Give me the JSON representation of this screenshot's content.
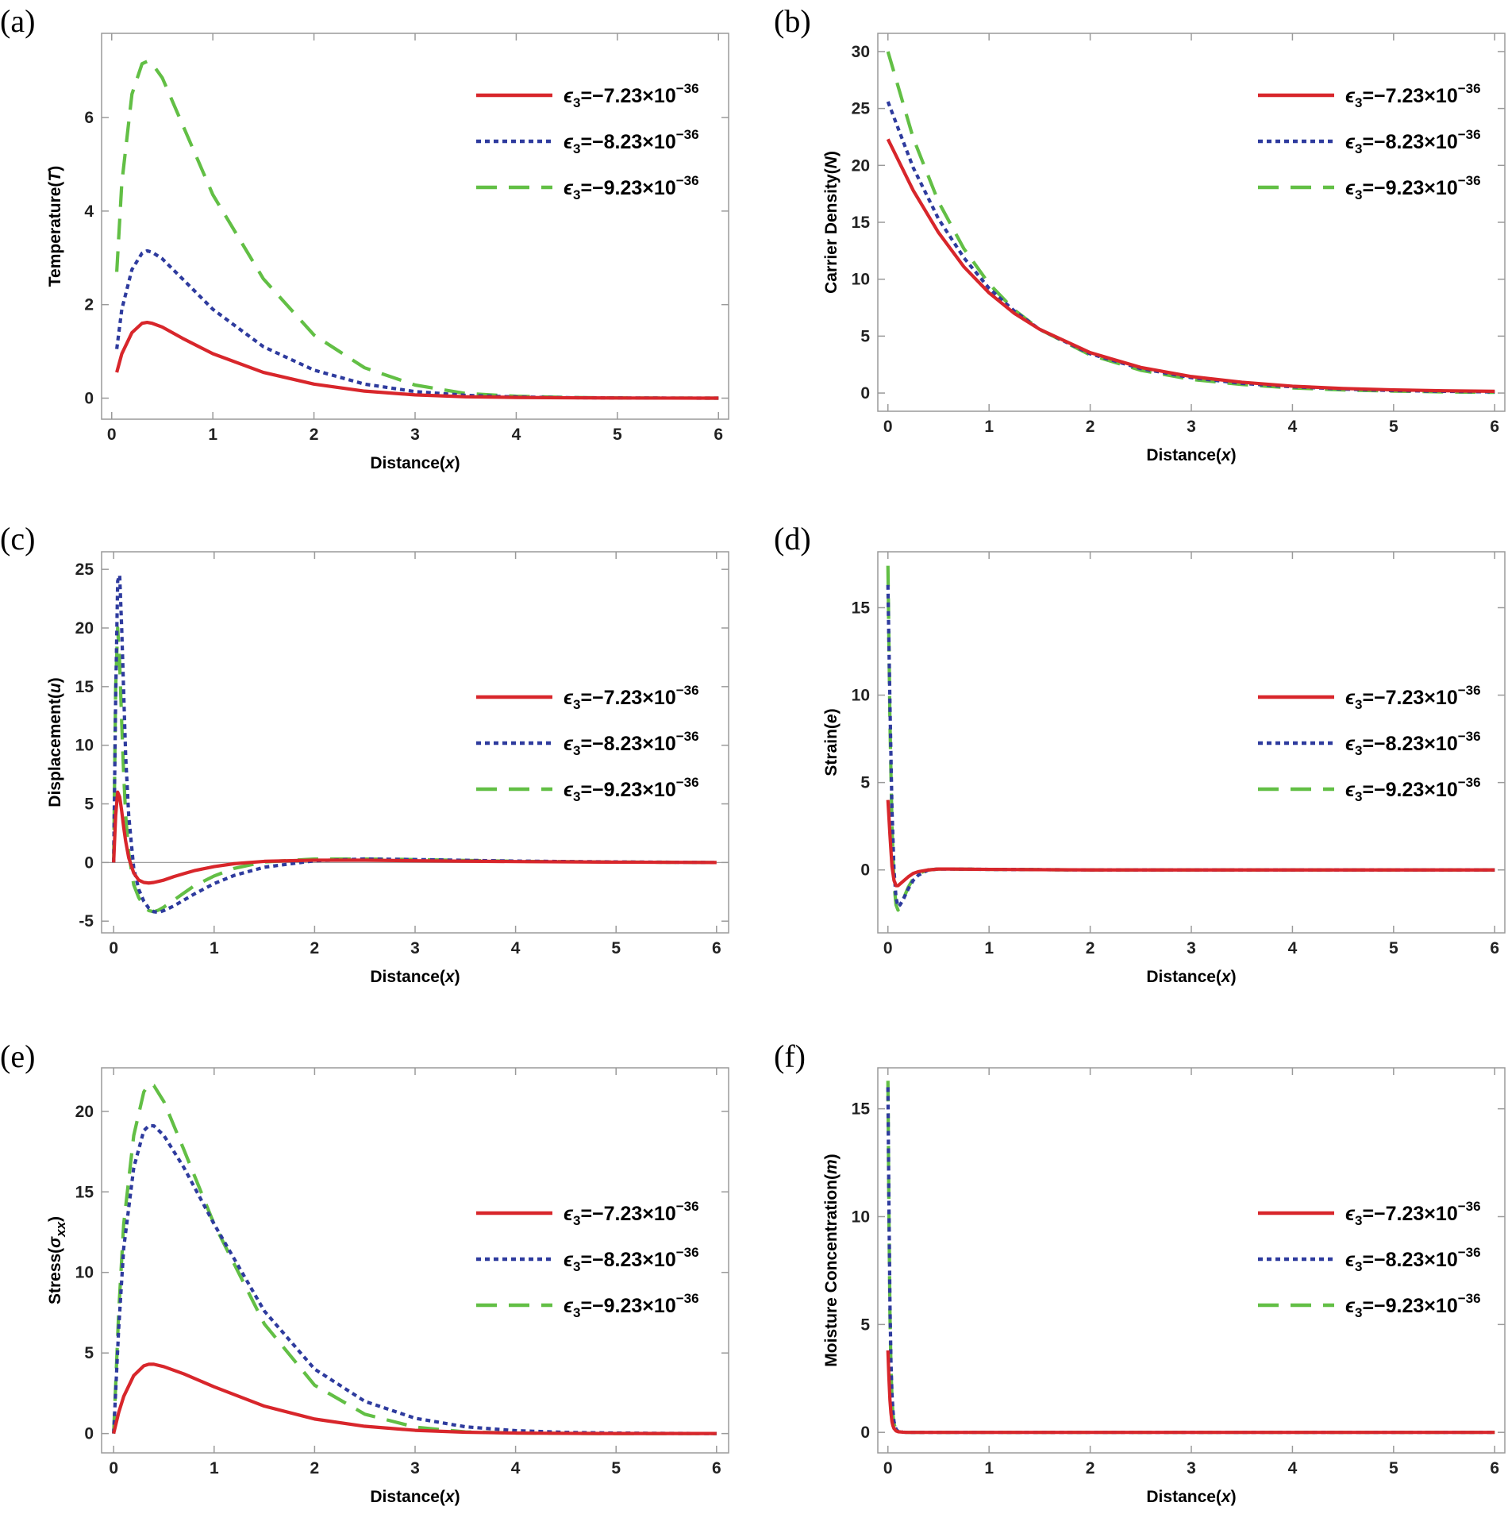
{
  "legend": {
    "symbol": "ϵ",
    "subscript": "3",
    "exponent": "−36",
    "entries": [
      {
        "coef": "=−7.23×10",
        "color": "#d8262b",
        "dash": "solid"
      },
      {
        "coef": "=−8.23×10",
        "color": "#2e3b9e",
        "dash": "dot"
      },
      {
        "coef": "=−9.23×10",
        "color": "#62bf45",
        "dash": "dash"
      }
    ]
  },
  "chart_data": [
    {
      "panel": "(a)",
      "type": "line",
      "xlabel": "Distance(",
      "xlabel_var": "x",
      "xlabel_tail": ")",
      "ylabel": "Temperature(",
      "ylabel_var": "T",
      "ylabel_tail": ")",
      "xlim": [
        -0.1,
        6.1
      ],
      "ylim": [
        -0.45,
        7.8
      ],
      "xticks": [
        0,
        1,
        2,
        3,
        4,
        5,
        6
      ],
      "yticks": [
        0,
        2,
        4,
        6
      ],
      "zero_line": false,
      "x": [
        0.05,
        0.1,
        0.2,
        0.3,
        0.35,
        0.4,
        0.5,
        0.7,
        1.0,
        1.5,
        2.0,
        2.5,
        3.0,
        3.5,
        4.0,
        4.5,
        5.0,
        5.5,
        6.0
      ],
      "series": [
        {
          "name": "ϵ3=−7.23×10^−36",
          "values": [
            0.55,
            0.95,
            1.4,
            1.6,
            1.62,
            1.6,
            1.52,
            1.28,
            0.95,
            0.55,
            0.3,
            0.15,
            0.07,
            0.03,
            0.015,
            0.007,
            0.003,
            0.001,
            0.0
          ]
        },
        {
          "name": "ϵ3=−8.23×10^−36",
          "values": [
            1.05,
            1.9,
            2.75,
            3.1,
            3.15,
            3.12,
            2.98,
            2.55,
            1.9,
            1.1,
            0.6,
            0.3,
            0.14,
            0.06,
            0.025,
            0.01,
            0.004,
            0.001,
            0.0
          ]
        },
        {
          "name": "ϵ3=−9.23×10^−36",
          "values": [
            2.7,
            4.6,
            6.5,
            7.15,
            7.2,
            7.15,
            6.85,
            5.85,
            4.35,
            2.55,
            1.35,
            0.65,
            0.28,
            0.1,
            0.04,
            0.015,
            0.005,
            0.001,
            0.0
          ]
        }
      ]
    },
    {
      "panel": "(b)",
      "type": "line",
      "xlabel": "Distance(",
      "xlabel_var": "x",
      "xlabel_tail": ")",
      "ylabel": "Carrier Density(",
      "ylabel_var": "N",
      "ylabel_tail": ")",
      "xlim": [
        -0.1,
        6.1
      ],
      "ylim": [
        -1.6,
        31.6
      ],
      "xticks": [
        0,
        1,
        2,
        3,
        4,
        5,
        6
      ],
      "yticks": [
        0,
        5,
        10,
        15,
        20,
        25,
        30
      ],
      "zero_line": false,
      "x": [
        0.0,
        0.25,
        0.5,
        0.75,
        1.0,
        1.25,
        1.5,
        2.0,
        2.5,
        3.0,
        3.5,
        4.0,
        4.5,
        5.0,
        5.5,
        6.0
      ],
      "series": [
        {
          "name": "ϵ3=−7.23×10^−36",
          "values": [
            22.3,
            17.8,
            14.1,
            11.1,
            8.8,
            7.0,
            5.6,
            3.55,
            2.25,
            1.45,
            0.95,
            0.6,
            0.4,
            0.28,
            0.2,
            0.15
          ]
        },
        {
          "name": "ϵ3=−8.23×10^−36",
          "values": [
            25.6,
            19.8,
            15.3,
            11.9,
            9.2,
            7.2,
            5.6,
            3.45,
            2.15,
            1.35,
            0.85,
            0.55,
            0.35,
            0.22,
            0.15,
            0.1
          ]
        },
        {
          "name": "ϵ3=−9.23×10^−36",
          "values": [
            30.0,
            22.4,
            16.8,
            12.7,
            9.6,
            7.3,
            5.6,
            3.35,
            2.0,
            1.2,
            0.75,
            0.45,
            0.27,
            0.17,
            0.1,
            0.06
          ]
        }
      ]
    },
    {
      "panel": "(c)",
      "type": "line",
      "xlabel": "Distance(",
      "xlabel_var": "x",
      "xlabel_tail": ")",
      "ylabel": "Displacement(",
      "ylabel_var": "u",
      "ylabel_tail": ")",
      "xlim": [
        -0.12,
        6.12
      ],
      "ylim": [
        -6.0,
        26.5
      ],
      "xticks": [
        0,
        1,
        2,
        3,
        4,
        5,
        6
      ],
      "yticks": [
        -5,
        0,
        5,
        10,
        15,
        20,
        25
      ],
      "zero_line": true,
      "x": [
        0.0,
        0.02,
        0.04,
        0.06,
        0.08,
        0.1,
        0.12,
        0.15,
        0.2,
        0.25,
        0.3,
        0.35,
        0.4,
        0.45,
        0.5,
        0.6,
        0.7,
        0.8,
        1.0,
        1.2,
        1.5,
        2.0,
        2.5,
        3.0,
        4.0,
        5.0,
        6.0
      ],
      "series": [
        {
          "name": "ϵ3=−7.23×10^−36",
          "values": [
            0.0,
            4.0,
            6.0,
            5.6,
            4.4,
            3.0,
            1.8,
            0.4,
            -0.9,
            -1.5,
            -1.7,
            -1.75,
            -1.7,
            -1.6,
            -1.5,
            -1.2,
            -0.95,
            -0.7,
            -0.35,
            -0.1,
            0.1,
            0.2,
            0.2,
            0.15,
            0.08,
            0.03,
            0.0
          ]
        },
        {
          "name": "ϵ3=−8.23×10^−36",
          "values": [
            0.0,
            14.0,
            24.0,
            24.5,
            20.0,
            14.5,
            9.0,
            4.0,
            -0.5,
            -2.3,
            -3.3,
            -3.9,
            -4.2,
            -4.25,
            -4.1,
            -3.7,
            -3.2,
            -2.7,
            -1.8,
            -1.1,
            -0.4,
            0.15,
            0.3,
            0.25,
            0.12,
            0.05,
            0.0
          ]
        },
        {
          "name": "ϵ3=−9.23×10^−36",
          "values": [
            0.0,
            15.0,
            20.0,
            17.0,
            12.0,
            7.5,
            4.0,
            0.8,
            -1.9,
            -3.0,
            -3.7,
            -4.1,
            -4.2,
            -4.05,
            -3.8,
            -3.2,
            -2.6,
            -2.0,
            -1.15,
            -0.5,
            0.05,
            0.3,
            0.3,
            0.25,
            0.1,
            0.04,
            0.0
          ]
        }
      ]
    },
    {
      "panel": "(d)",
      "type": "line",
      "xlabel": "Distance(",
      "xlabel_var": "x",
      "xlabel_tail": ")",
      "ylabel": "Strain(",
      "ylabel_var": "e",
      "ylabel_tail": ")",
      "xlim": [
        -0.1,
        6.1
      ],
      "ylim": [
        -3.6,
        18.2
      ],
      "xticks": [
        0,
        1,
        2,
        3,
        4,
        5,
        6
      ],
      "yticks": [
        0,
        5,
        10,
        15
      ],
      "zero_line": false,
      "x": [
        0.0,
        0.02,
        0.04,
        0.06,
        0.08,
        0.1,
        0.12,
        0.15,
        0.2,
        0.25,
        0.3,
        0.4,
        0.5,
        0.6,
        1.0,
        2.0,
        3.0,
        4.0,
        5.0,
        6.0
      ],
      "series": [
        {
          "name": "ϵ3=−7.23×10^−36",
          "values": [
            4.0,
            2.0,
            0.2,
            -0.6,
            -0.9,
            -0.9,
            -0.8,
            -0.65,
            -0.4,
            -0.2,
            -0.1,
            0.0,
            0.05,
            0.05,
            0.03,
            0.0,
            0.0,
            0.0,
            0.0,
            0.0
          ]
        },
        {
          "name": "ϵ3=−8.23×10^−36",
          "values": [
            16.3,
            9.5,
            3.5,
            0.0,
            -1.6,
            -2.1,
            -2.0,
            -1.7,
            -1.1,
            -0.6,
            -0.3,
            0.0,
            0.05,
            0.05,
            0.03,
            0.0,
            0.0,
            0.0,
            0.0,
            0.0
          ]
        },
        {
          "name": "ϵ3=−9.23×10^−36",
          "values": [
            17.4,
            8.5,
            2.5,
            -0.8,
            -2.0,
            -2.3,
            -2.1,
            -1.7,
            -1.0,
            -0.5,
            -0.2,
            0.0,
            0.05,
            0.05,
            0.03,
            0.0,
            0.0,
            0.0,
            0.0,
            0.0
          ]
        }
      ]
    },
    {
      "panel": "(e)",
      "type": "line",
      "xlabel": "Distance(",
      "xlabel_var": "x",
      "xlabel_tail": ")",
      "ylabel": "Stress(",
      "ylabel_var": "σ",
      "ylabel_sub": "xx",
      "ylabel_tail": ")",
      "xlim": [
        -0.12,
        6.12
      ],
      "ylim": [
        -1.2,
        22.7
      ],
      "xticks": [
        0,
        1,
        2,
        3,
        4,
        5,
        6
      ],
      "yticks": [
        0,
        5,
        10,
        15,
        20
      ],
      "zero_line": false,
      "x": [
        0.0,
        0.05,
        0.1,
        0.2,
        0.3,
        0.35,
        0.4,
        0.5,
        0.7,
        1.0,
        1.5,
        2.0,
        2.5,
        3.0,
        3.5,
        4.0,
        4.5,
        5.0,
        5.5,
        6.0
      ],
      "series": [
        {
          "name": "ϵ3=−7.23×10^−36",
          "values": [
            0.0,
            1.3,
            2.3,
            3.6,
            4.2,
            4.3,
            4.3,
            4.15,
            3.7,
            2.9,
            1.7,
            0.9,
            0.45,
            0.2,
            0.08,
            0.03,
            0.01,
            0.0,
            0.0,
            0.0
          ]
        },
        {
          "name": "ϵ3=−8.23×10^−36",
          "values": [
            0.0,
            6.5,
            11.5,
            16.5,
            18.8,
            19.1,
            19.1,
            18.5,
            16.5,
            13.0,
            7.6,
            4.0,
            2.0,
            0.95,
            0.42,
            0.18,
            0.07,
            0.03,
            0.01,
            0.0
          ]
        },
        {
          "name": "ϵ3=−9.23×10^−36",
          "values": [
            0.0,
            7.5,
            13.0,
            18.5,
            21.2,
            21.7,
            21.6,
            20.6,
            17.6,
            13.0,
            6.8,
            3.0,
            1.2,
            0.4,
            0.1,
            0.03,
            0.01,
            0.0,
            0.0,
            0.0
          ]
        }
      ]
    },
    {
      "panel": "(f)",
      "type": "line",
      "xlabel": "Distance(",
      "xlabel_var": "x",
      "xlabel_tail": ")",
      "ylabel": "Moisture Concentration(",
      "ylabel_var": "m",
      "ylabel_tail": ")",
      "xlim": [
        -0.1,
        6.1
      ],
      "ylim": [
        -0.95,
        16.9
      ],
      "xticks": [
        0,
        1,
        2,
        3,
        4,
        5,
        6
      ],
      "yticks": [
        0,
        5,
        10,
        15
      ],
      "zero_line": false,
      "x": [
        0.0,
        0.01,
        0.02,
        0.03,
        0.04,
        0.05,
        0.06,
        0.08,
        0.1,
        0.15,
        0.2,
        1.0,
        2.0,
        3.0,
        4.0,
        5.0,
        6.0
      ],
      "series": [
        {
          "name": "ϵ3=−7.23×10^−36",
          "values": [
            3.8,
            2.5,
            1.5,
            0.9,
            0.5,
            0.3,
            0.18,
            0.07,
            0.03,
            0.01,
            0.0,
            0.0,
            0.0,
            0.0,
            0.0,
            0.0,
            0.0
          ]
        },
        {
          "name": "ϵ3=−8.23×10^−36",
          "values": [
            16.0,
            10.5,
            6.0,
            3.3,
            1.8,
            1.0,
            0.5,
            0.15,
            0.05,
            0.01,
            0.0,
            0.0,
            0.0,
            0.0,
            0.0,
            0.0,
            0.0
          ]
        },
        {
          "name": "ϵ3=−9.23×10^−36",
          "values": [
            16.3,
            10.0,
            5.5,
            3.0,
            1.6,
            0.8,
            0.4,
            0.12,
            0.04,
            0.01,
            0.0,
            0.0,
            0.0,
            0.0,
            0.0,
            0.0,
            0.0
          ]
        }
      ]
    }
  ]
}
